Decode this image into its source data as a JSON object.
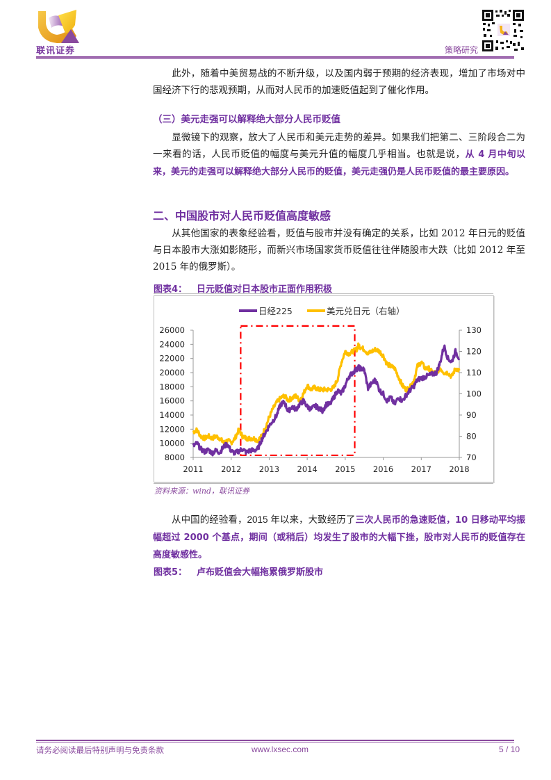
{
  "header": {
    "brand": "联讯证券",
    "section": "策略研究",
    "colors": {
      "brand_purple": "#8a4a9e",
      "brand_gold": "#f5b31a"
    }
  },
  "body": {
    "para1": {
      "text": "此外，随着中美贸易战的不断升级，以及国内弱于预期的经济表现，增加了市场对中国经济下行的悲观预期，从而对人民币的加速贬值起到了催化作用。"
    },
    "subheading3": "（三）美元走强可以解释绝大部分人民币贬值",
    "para2": {
      "plain": "显微镜下的观察，放大了人民币和美元走势的差异。如果我们把第二、三阶段合二为一来看的话，人民币贬值的幅度与美元升值的幅度几乎相当。也就是说，",
      "highlight": "从 4 月中旬以来，美元的走强可以解释绝大部分人民币的贬值，美元走强仍是人民币贬值的最主要原因。"
    },
    "heading2": "二、中国股市对人民币贬值高度敏感",
    "para3": {
      "text": "从其他国家的表象经验看，贬值与股市并没有确定的关系，比如 2012 年日元的贬值与日本股市大涨如影随形，而新兴市场国家货币贬值往往伴随股市大跌（比如 2012 年至 2015 年的俄罗斯）。"
    },
    "figure4": {
      "label": "图表4：",
      "title": "日元贬值对日本股市正面作用积极",
      "source": "资料来源：wind，联讯证券"
    },
    "para4": {
      "plain": "从中国的经验看，2015 年以来，大致经历了",
      "highlight": "三次人民币的急速贬值，10 日移动平均振幅超过 2000 个基点，期间（或稍后）均发生了股市的大幅下挫，股市对人民币的贬值存在高度敏感性。"
    },
    "figure5": {
      "label": "图表5：",
      "title": "卢布贬值会大幅拖累俄罗斯股市"
    }
  },
  "footer": {
    "disclaimer": "请务必阅读最后特别声明与免责条款",
    "website": "www.lxsec.com",
    "page": "5 / 10"
  },
  "chart_data": {
    "type": "line",
    "title": "日元贬值对日本股市正面作用积极",
    "legend": {
      "position": "top",
      "entries": [
        "日经225",
        "美元兑日元（右轴）"
      ]
    },
    "x_ticks": [
      "2011",
      "2012",
      "2013",
      "2014",
      "2015",
      "2016",
      "2017",
      "2018"
    ],
    "y_left": {
      "label": "",
      "ticks": [
        "8000",
        "10000",
        "12000",
        "14000",
        "16000",
        "18000",
        "20000",
        "22000",
        "24000",
        "26000"
      ],
      "range": [
        8000,
        26000
      ]
    },
    "y_right": {
      "label": "右轴",
      "ticks": [
        "70",
        "80",
        "90",
        "100",
        "110",
        "120",
        "130"
      ],
      "range": [
        70,
        130
      ]
    },
    "grid": false,
    "series": [
      {
        "name": "日经225",
        "axis": "left",
        "color": "#7030a0",
        "x": [
          2011.0,
          2011.1,
          2011.2,
          2011.3,
          2011.4,
          2011.5,
          2011.6,
          2011.7,
          2011.8,
          2011.9,
          2012.0,
          2012.1,
          2012.2,
          2012.3,
          2012.4,
          2012.5,
          2012.6,
          2012.7,
          2012.8,
          2012.9,
          2013.0,
          2013.1,
          2013.2,
          2013.3,
          2013.4,
          2013.5,
          2013.6,
          2013.7,
          2013.8,
          2013.9,
          2014.0,
          2014.1,
          2014.2,
          2014.3,
          2014.4,
          2014.5,
          2014.6,
          2014.7,
          2014.8,
          2014.9,
          2015.0,
          2015.1,
          2015.2,
          2015.3,
          2015.35,
          2015.4,
          2015.5,
          2015.6,
          2015.7,
          2015.8,
          2015.9,
          2016.0,
          2016.1,
          2016.2,
          2016.3,
          2016.4,
          2016.5,
          2016.6,
          2016.7,
          2016.8,
          2016.9,
          2017.0,
          2017.1,
          2017.2,
          2017.3,
          2017.4,
          2017.5,
          2017.6,
          2017.7,
          2017.8,
          2017.9,
          2018.0
        ],
        "values": [
          9600,
          10000,
          9200,
          8800,
          9100,
          8600,
          9000,
          8700,
          9500,
          9900,
          8900,
          8600,
          8900,
          9200,
          8700,
          9000,
          9000,
          9200,
          10500,
          11500,
          12500,
          13200,
          14000,
          15500,
          15800,
          14500,
          15200,
          14800,
          15500,
          16000,
          15200,
          14800,
          15300,
          15000,
          14600,
          15500,
          15500,
          16500,
          17500,
          17000,
          18200,
          19500,
          20000,
          20500,
          20700,
          20600,
          20400,
          17800,
          18500,
          19000,
          17500,
          17000,
          16000,
          16500,
          15500,
          16500,
          16000,
          16800,
          17500,
          18000,
          19000,
          19200,
          19400,
          19600,
          19800,
          20000,
          21500,
          23800,
          22000,
          21500,
          23000,
          22000
        ]
      },
      {
        "name": "美元兑日元（右轴）",
        "axis": "right",
        "color": "#ffc000",
        "x": [
          2011.0,
          2011.1,
          2011.2,
          2011.3,
          2011.4,
          2011.5,
          2011.6,
          2011.7,
          2011.8,
          2011.9,
          2012.0,
          2012.1,
          2012.2,
          2012.3,
          2012.4,
          2012.5,
          2012.6,
          2012.7,
          2012.8,
          2012.9,
          2013.0,
          2013.1,
          2013.2,
          2013.3,
          2013.4,
          2013.5,
          2013.6,
          2013.7,
          2013.8,
          2013.9,
          2014.0,
          2014.1,
          2014.2,
          2014.3,
          2014.4,
          2014.5,
          2014.6,
          2014.7,
          2014.8,
          2014.9,
          2015.0,
          2015.1,
          2015.2,
          2015.3,
          2015.35,
          2015.4,
          2015.5,
          2015.6,
          2015.7,
          2015.8,
          2015.9,
          2016.0,
          2016.1,
          2016.2,
          2016.3,
          2016.4,
          2016.5,
          2016.6,
          2016.7,
          2016.8,
          2016.9,
          2017.0,
          2017.1,
          2017.2,
          2017.3,
          2017.4,
          2017.5,
          2017.6,
          2017.7,
          2017.8,
          2017.9,
          2018.0
        ],
        "values": [
          82,
          83,
          80,
          79,
          80,
          79,
          80,
          79,
          77,
          78,
          77,
          79,
          83,
          80,
          79,
          79,
          79,
          78,
          80,
          84,
          89,
          93,
          96,
          98,
          99,
          97,
          98,
          99,
          97,
          100,
          104,
          102,
          103,
          102,
          102,
          102,
          102,
          103,
          107,
          115,
          120,
          119,
          120,
          121,
          123,
          122,
          121,
          119,
          120,
          121,
          120,
          118,
          114,
          113,
          112,
          108,
          104,
          102,
          103,
          106,
          113,
          115,
          112,
          112,
          110,
          110,
          112,
          110,
          110,
          108,
          112,
          111
        ]
      }
    ],
    "annotations": [
      {
        "type": "dash-dot rectangle",
        "color": "#ff0000",
        "x_range": [
          2012.25,
          2015.25
        ],
        "y_range_left": [
          8300,
          26600
        ]
      }
    ]
  }
}
